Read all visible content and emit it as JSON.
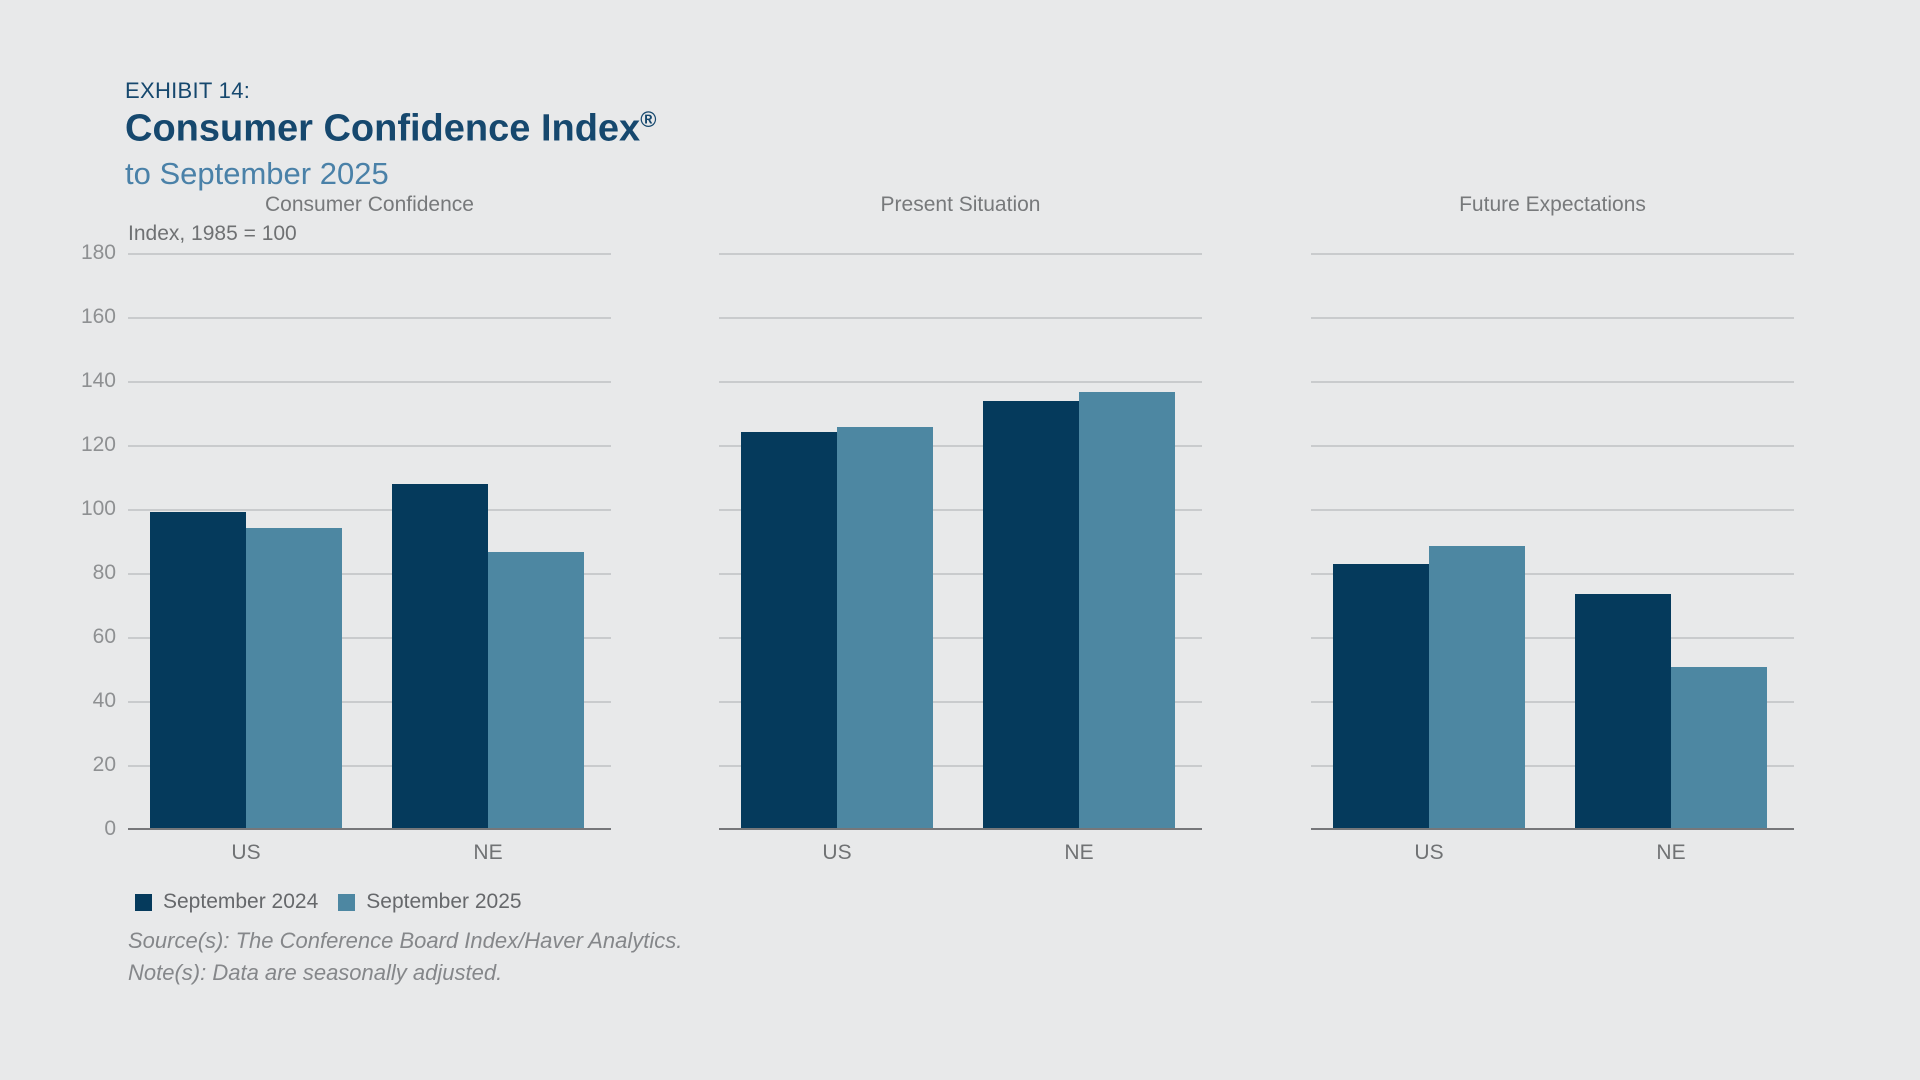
{
  "header": {
    "exhibit": "EXHIBIT 14:",
    "title": "Consumer Confidence Index",
    "title_registered": "®",
    "subtitle": "to September 2025"
  },
  "axis": {
    "unit_label": "Index, 1985 = 100",
    "max": 180,
    "ticks": [
      180,
      160,
      140,
      120,
      100,
      80,
      60,
      40,
      20,
      0
    ]
  },
  "legend": [
    {
      "label": "September 2024",
      "color": "#053a5c"
    },
    {
      "label": "September 2025",
      "color": "#4d87a2"
    }
  ],
  "footer": {
    "source": "Source(s): The Conference Board Index/Haver Analytics.",
    "note": "Note(s): Data are seasonally adjusted."
  },
  "colors": {
    "background": "#e8e9ea",
    "bar_september_2024": "#053a5c",
    "bar_september_2025": "#4d87a2",
    "title_text": "#16486e",
    "subtitle_text": "#4a81a8",
    "gridline": "#c9cbcd",
    "axis_line": "#76777a",
    "gray_text": "#77797b"
  },
  "chart_data": [
    {
      "type": "bar",
      "title": "Consumer Confidence",
      "categories": [
        "US",
        "NE"
      ],
      "series": [
        {
          "name": "September 2024",
          "values": [
            99.2,
            107.8
          ]
        },
        {
          "name": "September 2025",
          "values": [
            94.2,
            86.5
          ]
        }
      ],
      "ylabel": "Index, 1985 = 100",
      "ylim": [
        0,
        180
      ],
      "grid": true,
      "legend_position": "bottom-left"
    },
    {
      "type": "bar",
      "title": "Present Situation",
      "categories": [
        "US",
        "NE"
      ],
      "series": [
        {
          "name": "September 2024",
          "values": [
            124.1,
            133.8
          ]
        },
        {
          "name": "September 2025",
          "values": [
            125.5,
            136.5
          ]
        }
      ],
      "ylim": [
        0,
        180
      ],
      "grid": true
    },
    {
      "type": "bar",
      "title": "Future Expectations",
      "categories": [
        "US",
        "NE"
      ],
      "series": [
        {
          "name": "September 2024",
          "values": [
            82.8,
            73.5
          ]
        },
        {
          "name": "September 2025",
          "values": [
            88.5,
            50.5
          ]
        }
      ],
      "ylim": [
        0,
        180
      ],
      "grid": true
    }
  ]
}
